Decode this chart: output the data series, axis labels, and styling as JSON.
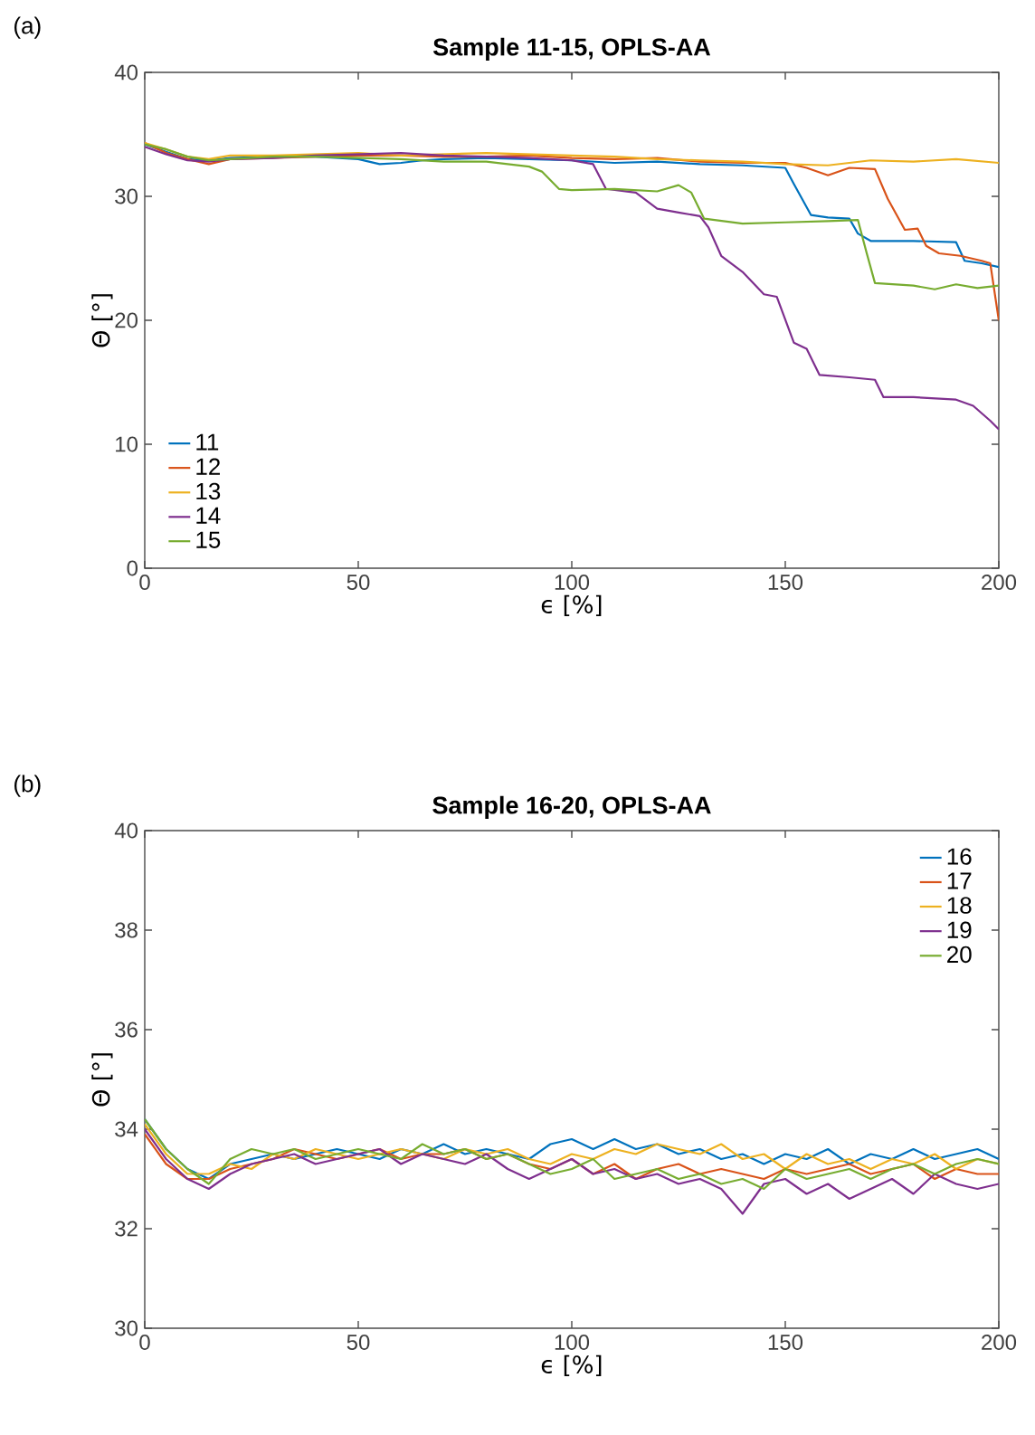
{
  "chart_data": [
    {
      "type": "line",
      "title": "Sample 11-15, OPLS-AA",
      "xlabel": "ϵ [%]",
      "ylabel": "Θ [°]",
      "annotations": [
        "(a)"
      ],
      "xlim": [
        0,
        200
      ],
      "ylim": [
        0,
        40
      ],
      "xticks": [
        0,
        50,
        100,
        150,
        200
      ],
      "yticks": [
        0,
        10,
        20,
        30,
        40
      ],
      "grid": false,
      "legend": "bottom left",
      "marker": "none",
      "line_style": "solid",
      "series": [
        {
          "name": "11",
          "color": "#0072bd",
          "x": [
            0,
            5,
            10,
            15,
            20,
            30,
            40,
            50,
            55,
            60,
            65,
            70,
            80,
            90,
            100,
            110,
            120,
            130,
            140,
            150,
            152,
            156,
            160,
            165,
            167,
            170,
            180,
            190,
            192,
            196,
            200
          ],
          "values": [
            34.2,
            33.6,
            33.0,
            32.9,
            33.1,
            33.2,
            33.2,
            33.0,
            32.6,
            32.7,
            32.9,
            33.0,
            33.1,
            33.0,
            32.9,
            32.7,
            32.8,
            32.6,
            32.5,
            32.3,
            31.0,
            28.5,
            28.3,
            28.2,
            27.0,
            26.4,
            26.4,
            26.3,
            24.8,
            24.6,
            24.3
          ]
        },
        {
          "name": "12",
          "color": "#d95319",
          "x": [
            0,
            5,
            10,
            15,
            20,
            30,
            40,
            50,
            60,
            70,
            80,
            90,
            100,
            110,
            120,
            130,
            140,
            150,
            155,
            160,
            165,
            171,
            174,
            178,
            181,
            183,
            186,
            191,
            196,
            198,
            200
          ],
          "values": [
            34.3,
            33.5,
            33.0,
            32.6,
            33.0,
            33.1,
            33.2,
            33.3,
            33.3,
            33.2,
            33.2,
            33.3,
            33.1,
            33.0,
            33.1,
            32.8,
            32.7,
            32.7,
            32.3,
            31.7,
            32.3,
            32.2,
            29.8,
            27.3,
            27.4,
            26.0,
            25.4,
            25.2,
            24.8,
            24.6,
            20.0
          ]
        },
        {
          "name": "13",
          "color": "#edb120",
          "x": [
            0,
            5,
            10,
            15,
            20,
            30,
            40,
            50,
            60,
            70,
            80,
            90,
            100,
            110,
            120,
            130,
            140,
            150,
            160,
            170,
            180,
            190,
            200
          ],
          "values": [
            34.3,
            33.8,
            33.2,
            33.0,
            33.3,
            33.3,
            33.4,
            33.5,
            33.3,
            33.4,
            33.5,
            33.4,
            33.3,
            33.2,
            33.0,
            32.9,
            32.8,
            32.6,
            32.5,
            32.9,
            32.8,
            33.0,
            32.7
          ]
        },
        {
          "name": "14",
          "color": "#7e2f8e",
          "x": [
            0,
            5,
            10,
            15,
            20,
            30,
            40,
            50,
            60,
            70,
            80,
            90,
            100,
            105,
            108,
            115,
            120,
            125,
            130,
            132,
            135,
            140,
            145,
            148,
            152,
            155,
            158,
            165,
            171,
            173,
            180,
            190,
            194,
            198,
            200
          ],
          "values": [
            34.0,
            33.4,
            32.9,
            32.8,
            33.0,
            33.1,
            33.3,
            33.4,
            33.5,
            33.3,
            33.2,
            33.1,
            32.9,
            32.6,
            30.6,
            30.3,
            29.0,
            28.7,
            28.4,
            27.5,
            25.2,
            23.9,
            22.1,
            21.9,
            18.2,
            17.7,
            15.6,
            15.4,
            15.2,
            13.8,
            13.8,
            13.6,
            13.1,
            11.9,
            11.2
          ]
        },
        {
          "name": "15",
          "color": "#77ac30",
          "x": [
            0,
            5,
            10,
            15,
            20,
            30,
            40,
            50,
            60,
            70,
            80,
            90,
            93,
            97,
            100,
            110,
            120,
            125,
            128,
            131,
            140,
            150,
            160,
            167,
            169,
            171,
            180,
            185,
            190,
            195,
            200
          ],
          "values": [
            34.2,
            33.8,
            33.2,
            32.9,
            33.0,
            33.2,
            33.2,
            33.1,
            33.0,
            32.8,
            32.8,
            32.4,
            32.0,
            30.6,
            30.5,
            30.6,
            30.4,
            30.9,
            30.3,
            28.2,
            27.8,
            27.9,
            28.0,
            28.1,
            25.5,
            23.0,
            22.8,
            22.5,
            22.9,
            22.6,
            22.8
          ]
        }
      ]
    },
    {
      "type": "line",
      "title": "Sample 16-20, OPLS-AA",
      "xlabel": "ϵ [%]",
      "ylabel": "Θ [°]",
      "annotations": [
        "(b)"
      ],
      "x": [
        0,
        5,
        10,
        15,
        20,
        25,
        30,
        35,
        40,
        45,
        50,
        55,
        60,
        65,
        70,
        75,
        80,
        85,
        90,
        95,
        100,
        105,
        110,
        115,
        120,
        125,
        130,
        135,
        140,
        145,
        150,
        155,
        160,
        165,
        170,
        175,
        180,
        185,
        190,
        195,
        200
      ],
      "xlim": [
        0,
        200
      ],
      "ylim": [
        30,
        40
      ],
      "xticks": [
        0,
        50,
        100,
        150,
        200
      ],
      "yticks": [
        30,
        32,
        34,
        36,
        38,
        40
      ],
      "grid": false,
      "legend": "top right",
      "marker": "none",
      "line_style": "solid",
      "series": [
        {
          "name": "16",
          "color": "#0072bd",
          "values": [
            34.2,
            33.6,
            33.2,
            33.0,
            33.3,
            33.4,
            33.5,
            33.4,
            33.5,
            33.6,
            33.5,
            33.4,
            33.6,
            33.5,
            33.7,
            33.5,
            33.6,
            33.5,
            33.4,
            33.7,
            33.8,
            33.6,
            33.8,
            33.6,
            33.7,
            33.5,
            33.6,
            33.4,
            33.5,
            33.3,
            33.5,
            33.4,
            33.6,
            33.3,
            33.5,
            33.4,
            33.6,
            33.4,
            33.5,
            33.6,
            33.4
          ]
        },
        {
          "name": "17",
          "color": "#d95319",
          "values": [
            33.9,
            33.3,
            33.0,
            33.0,
            33.2,
            33.3,
            33.4,
            33.6,
            33.5,
            33.4,
            33.5,
            33.6,
            33.4,
            33.5,
            33.5,
            33.6,
            33.4,
            33.5,
            33.3,
            33.2,
            33.4,
            33.1,
            33.3,
            33.0,
            33.2,
            33.3,
            33.1,
            33.2,
            33.1,
            33.0,
            33.2,
            33.1,
            33.2,
            33.3,
            33.1,
            33.2,
            33.3,
            33.0,
            33.2,
            33.1,
            33.1
          ]
        },
        {
          "name": "18",
          "color": "#edb120",
          "values": [
            34.1,
            33.5,
            33.1,
            33.1,
            33.3,
            33.2,
            33.5,
            33.4,
            33.6,
            33.5,
            33.4,
            33.5,
            33.6,
            33.5,
            33.4,
            33.6,
            33.5,
            33.6,
            33.4,
            33.3,
            33.5,
            33.4,
            33.6,
            33.5,
            33.7,
            33.6,
            33.5,
            33.7,
            33.4,
            33.5,
            33.2,
            33.5,
            33.3,
            33.4,
            33.2,
            33.4,
            33.3,
            33.5,
            33.2,
            33.4,
            33.3
          ]
        },
        {
          "name": "19",
          "color": "#7e2f8e",
          "values": [
            34.0,
            33.4,
            33.0,
            32.8,
            33.1,
            33.3,
            33.4,
            33.5,
            33.3,
            33.4,
            33.5,
            33.6,
            33.3,
            33.5,
            33.4,
            33.3,
            33.5,
            33.2,
            33.0,
            33.2,
            33.4,
            33.1,
            33.2,
            33.0,
            33.1,
            32.9,
            33.0,
            32.8,
            32.3,
            32.9,
            33.0,
            32.7,
            32.9,
            32.6,
            32.8,
            33.0,
            32.7,
            33.1,
            32.9,
            32.8,
            32.9
          ]
        },
        {
          "name": "20",
          "color": "#77ac30",
          "values": [
            34.2,
            33.6,
            33.2,
            32.9,
            33.4,
            33.6,
            33.5,
            33.6,
            33.4,
            33.5,
            33.6,
            33.5,
            33.4,
            33.7,
            33.5,
            33.6,
            33.4,
            33.5,
            33.3,
            33.1,
            33.2,
            33.4,
            33.0,
            33.1,
            33.2,
            33.0,
            33.1,
            32.9,
            33.0,
            32.8,
            33.2,
            33.0,
            33.1,
            33.2,
            33.0,
            33.2,
            33.3,
            33.1,
            33.3,
            33.4,
            33.3
          ]
        }
      ]
    }
  ]
}
